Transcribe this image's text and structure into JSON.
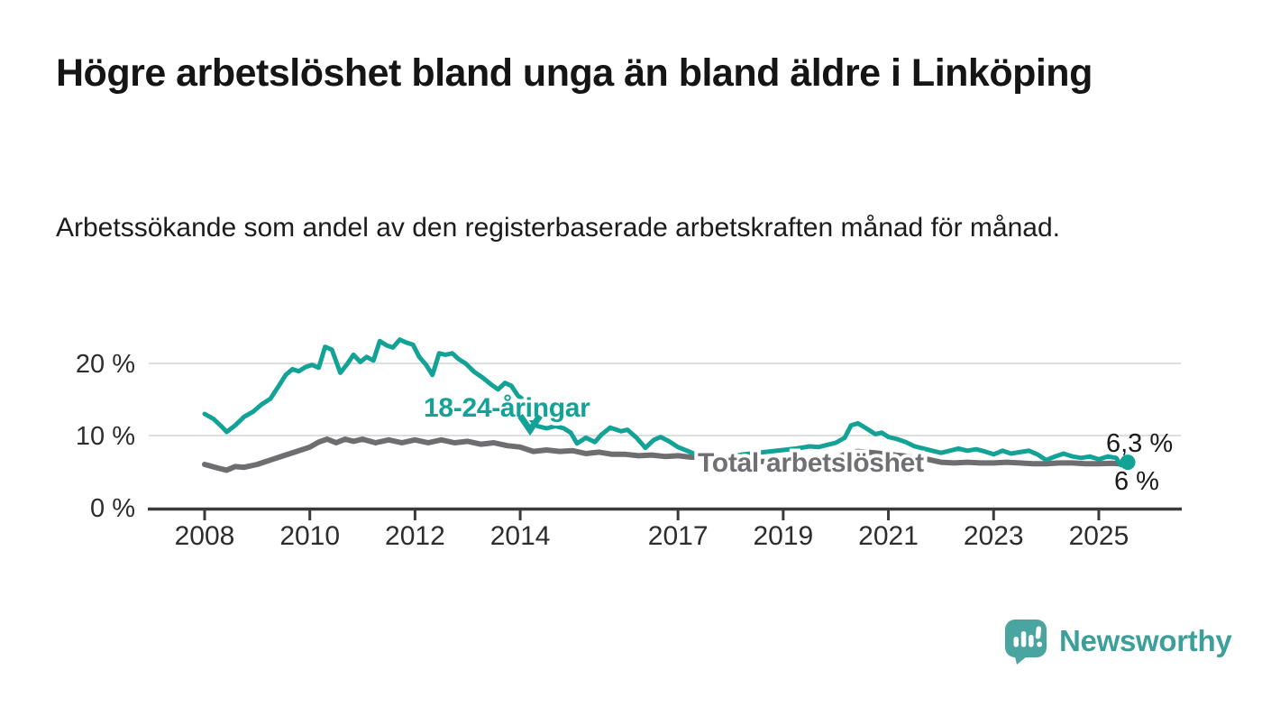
{
  "header": {
    "title": "Högre arbetslöshet bland unga än bland äldre i Linköping",
    "subtitle": "Arbetssökande som andel av den registerbaserade arbetskraften månad för månad."
  },
  "colors": {
    "young_line": "#12A296",
    "total_line": "#6E6E71",
    "total_label": "#707074",
    "grid": "#DEDEDE",
    "axis": "#3A3A3A",
    "tick_text": "#2D2D2D",
    "end_label_text": "#1A1A1A",
    "logo_icon": "#4AA49F",
    "logo_text": "#3C9F9A",
    "background": "#FFFFFF"
  },
  "chart_data": {
    "type": "line",
    "title": "",
    "xlabel": "",
    "ylabel": "",
    "unit": "%",
    "x_unit": "year (decimal, monthly data)",
    "ylim": [
      0,
      25
    ],
    "xlim": [
      2008,
      2026.5
    ],
    "grid": "horizontal",
    "legend_position": "inline-annotations",
    "yticks": [
      {
        "v": 0,
        "label": "0 %"
      },
      {
        "v": 10,
        "label": "10 %"
      },
      {
        "v": 20,
        "label": "20 %"
      }
    ],
    "xticks": [
      {
        "v": 2008,
        "label": "2008"
      },
      {
        "v": 2010,
        "label": "2010"
      },
      {
        "v": 2012,
        "label": "2012"
      },
      {
        "v": 2014,
        "label": "2014"
      },
      {
        "v": 2017,
        "label": "2017"
      },
      {
        "v": 2019,
        "label": "2019"
      },
      {
        "v": 2021,
        "label": "2021"
      },
      {
        "v": 2023,
        "label": "2023"
      },
      {
        "v": 2025,
        "label": "2025"
      }
    ],
    "series": [
      {
        "name": "18-24-åringar",
        "color": "#12A296",
        "end_label": "6,3 %",
        "end_dot": true,
        "points": [
          [
            2008.0,
            13.0
          ],
          [
            2008.17,
            12.3
          ],
          [
            2008.33,
            11.2
          ],
          [
            2008.42,
            10.5
          ],
          [
            2008.58,
            11.4
          ],
          [
            2008.75,
            12.6
          ],
          [
            2008.92,
            13.3
          ],
          [
            2009.08,
            14.3
          ],
          [
            2009.25,
            15.1
          ],
          [
            2009.42,
            17.0
          ],
          [
            2009.54,
            18.4
          ],
          [
            2009.67,
            19.2
          ],
          [
            2009.79,
            18.9
          ],
          [
            2009.92,
            19.5
          ],
          [
            2010.04,
            19.8
          ],
          [
            2010.17,
            19.4
          ],
          [
            2010.29,
            22.3
          ],
          [
            2010.42,
            21.9
          ],
          [
            2010.58,
            18.7
          ],
          [
            2010.71,
            19.9
          ],
          [
            2010.83,
            21.2
          ],
          [
            2010.96,
            20.2
          ],
          [
            2011.08,
            20.9
          ],
          [
            2011.21,
            20.4
          ],
          [
            2011.33,
            23.1
          ],
          [
            2011.46,
            22.5
          ],
          [
            2011.58,
            22.2
          ],
          [
            2011.71,
            23.3
          ],
          [
            2011.83,
            22.9
          ],
          [
            2011.96,
            22.6
          ],
          [
            2012.08,
            20.9
          ],
          [
            2012.21,
            19.8
          ],
          [
            2012.33,
            18.4
          ],
          [
            2012.46,
            21.4
          ],
          [
            2012.58,
            21.2
          ],
          [
            2012.71,
            21.4
          ],
          [
            2012.83,
            20.6
          ],
          [
            2012.96,
            20.0
          ],
          [
            2013.13,
            18.8
          ],
          [
            2013.29,
            18.0
          ],
          [
            2013.46,
            17.0
          ],
          [
            2013.58,
            16.4
          ],
          [
            2013.71,
            17.3
          ],
          [
            2013.83,
            16.9
          ],
          [
            2013.96,
            15.5
          ],
          [
            2014.08,
            14.9
          ],
          [
            2014.21,
            12.2
          ],
          [
            2014.33,
            11.3
          ],
          [
            2014.5,
            11.0
          ],
          [
            2014.67,
            11.3
          ],
          [
            2014.83,
            11.0
          ],
          [
            2014.96,
            10.4
          ],
          [
            2015.08,
            8.9
          ],
          [
            2015.25,
            9.7
          ],
          [
            2015.42,
            9.1
          ],
          [
            2015.54,
            10.1
          ],
          [
            2015.71,
            11.1
          ],
          [
            2015.92,
            10.6
          ],
          [
            2016.04,
            10.8
          ],
          [
            2016.21,
            9.7
          ],
          [
            2016.38,
            8.3
          ],
          [
            2016.54,
            9.4
          ],
          [
            2016.67,
            9.8
          ],
          [
            2016.83,
            9.2
          ],
          [
            2017.0,
            8.4
          ],
          [
            2017.17,
            7.9
          ],
          [
            2017.33,
            7.4
          ],
          [
            2017.5,
            7.0
          ],
          [
            2017.67,
            6.6
          ],
          [
            2017.83,
            6.9
          ],
          [
            2018.0,
            7.1
          ],
          [
            2018.25,
            7.4
          ],
          [
            2018.5,
            7.6
          ],
          [
            2018.75,
            7.8
          ],
          [
            2019.0,
            8.0
          ],
          [
            2019.25,
            8.2
          ],
          [
            2019.5,
            8.5
          ],
          [
            2019.67,
            8.4
          ],
          [
            2019.83,
            8.7
          ],
          [
            2020.0,
            9.0
          ],
          [
            2020.17,
            9.7
          ],
          [
            2020.29,
            11.4
          ],
          [
            2020.42,
            11.7
          ],
          [
            2020.58,
            11.0
          ],
          [
            2020.75,
            10.2
          ],
          [
            2020.87,
            10.4
          ],
          [
            2021.0,
            9.8
          ],
          [
            2021.17,
            9.5
          ],
          [
            2021.33,
            9.1
          ],
          [
            2021.5,
            8.5
          ],
          [
            2021.67,
            8.2
          ],
          [
            2021.83,
            7.9
          ],
          [
            2022.0,
            7.6
          ],
          [
            2022.17,
            7.9
          ],
          [
            2022.33,
            8.2
          ],
          [
            2022.5,
            7.9
          ],
          [
            2022.67,
            8.1
          ],
          [
            2022.83,
            7.8
          ],
          [
            2023.0,
            7.4
          ],
          [
            2023.17,
            7.9
          ],
          [
            2023.33,
            7.5
          ],
          [
            2023.5,
            7.7
          ],
          [
            2023.67,
            7.9
          ],
          [
            2023.83,
            7.4
          ],
          [
            2024.0,
            6.6
          ],
          [
            2024.17,
            7.1
          ],
          [
            2024.33,
            7.5
          ],
          [
            2024.5,
            7.1
          ],
          [
            2024.67,
            6.9
          ],
          [
            2024.83,
            7.1
          ],
          [
            2025.0,
            6.7
          ],
          [
            2025.17,
            7.1
          ],
          [
            2025.33,
            6.9
          ],
          [
            2025.42,
            5.9
          ],
          [
            2025.55,
            6.3
          ]
        ]
      },
      {
        "name": "Total arbetslöshet",
        "color": "#6E6E71",
        "end_label": "6 %",
        "end_dot": false,
        "points": [
          [
            2008.0,
            6.0
          ],
          [
            2008.25,
            5.5
          ],
          [
            2008.42,
            5.2
          ],
          [
            2008.58,
            5.7
          ],
          [
            2008.75,
            5.6
          ],
          [
            2009.0,
            6.0
          ],
          [
            2009.25,
            6.6
          ],
          [
            2009.5,
            7.2
          ],
          [
            2009.75,
            7.8
          ],
          [
            2010.0,
            8.4
          ],
          [
            2010.17,
            9.1
          ],
          [
            2010.33,
            9.5
          ],
          [
            2010.5,
            9.0
          ],
          [
            2010.67,
            9.5
          ],
          [
            2010.83,
            9.2
          ],
          [
            2011.0,
            9.5
          ],
          [
            2011.25,
            9.0
          ],
          [
            2011.5,
            9.4
          ],
          [
            2011.75,
            9.0
          ],
          [
            2012.0,
            9.4
          ],
          [
            2012.25,
            9.0
          ],
          [
            2012.5,
            9.4
          ],
          [
            2012.75,
            9.0
          ],
          [
            2013.0,
            9.2
          ],
          [
            2013.25,
            8.8
          ],
          [
            2013.5,
            9.0
          ],
          [
            2013.75,
            8.6
          ],
          [
            2014.0,
            8.4
          ],
          [
            2014.25,
            7.8
          ],
          [
            2014.5,
            8.0
          ],
          [
            2014.75,
            7.8
          ],
          [
            2015.0,
            7.9
          ],
          [
            2015.25,
            7.5
          ],
          [
            2015.5,
            7.7
          ],
          [
            2015.75,
            7.4
          ],
          [
            2016.0,
            7.4
          ],
          [
            2016.25,
            7.2
          ],
          [
            2016.5,
            7.3
          ],
          [
            2016.75,
            7.1
          ],
          [
            2017.0,
            7.2
          ],
          [
            2017.25,
            7.0
          ],
          [
            2017.5,
            7.0
          ],
          [
            2017.75,
            6.8
          ],
          [
            2018.0,
            6.6
          ],
          [
            2018.25,
            6.5
          ],
          [
            2018.5,
            6.4
          ],
          [
            2018.75,
            6.4
          ],
          [
            2019.0,
            6.4
          ],
          [
            2019.25,
            6.5
          ],
          [
            2019.5,
            6.5
          ],
          [
            2019.75,
            6.6
          ],
          [
            2020.0,
            6.9
          ],
          [
            2020.25,
            7.6
          ],
          [
            2020.42,
            7.8
          ],
          [
            2020.58,
            7.7
          ],
          [
            2020.75,
            7.6
          ],
          [
            2021.0,
            7.4
          ],
          [
            2021.25,
            7.2
          ],
          [
            2021.5,
            7.0
          ],
          [
            2021.75,
            6.7
          ],
          [
            2022.0,
            6.3
          ],
          [
            2022.25,
            6.2
          ],
          [
            2022.5,
            6.3
          ],
          [
            2022.75,
            6.2
          ],
          [
            2023.0,
            6.2
          ],
          [
            2023.25,
            6.3
          ],
          [
            2023.5,
            6.2
          ],
          [
            2023.75,
            6.1
          ],
          [
            2024.0,
            6.1
          ],
          [
            2024.25,
            6.2
          ],
          [
            2024.5,
            6.2
          ],
          [
            2024.75,
            6.1
          ],
          [
            2025.0,
            6.1
          ],
          [
            2025.25,
            6.15
          ],
          [
            2025.55,
            6.0
          ]
        ]
      }
    ],
    "annotations": [
      {
        "type": "series-label",
        "series": 0,
        "text": "18-24-åringar",
        "arrow": "down"
      },
      {
        "type": "series-label",
        "series": 1,
        "text": "Total arbetslöshet"
      },
      {
        "type": "end-value",
        "series": 0,
        "text": "6,3 %"
      },
      {
        "type": "end-value",
        "series": 1,
        "text": "6 %"
      }
    ]
  },
  "footer": {
    "logo_text": "Newsworthy"
  }
}
